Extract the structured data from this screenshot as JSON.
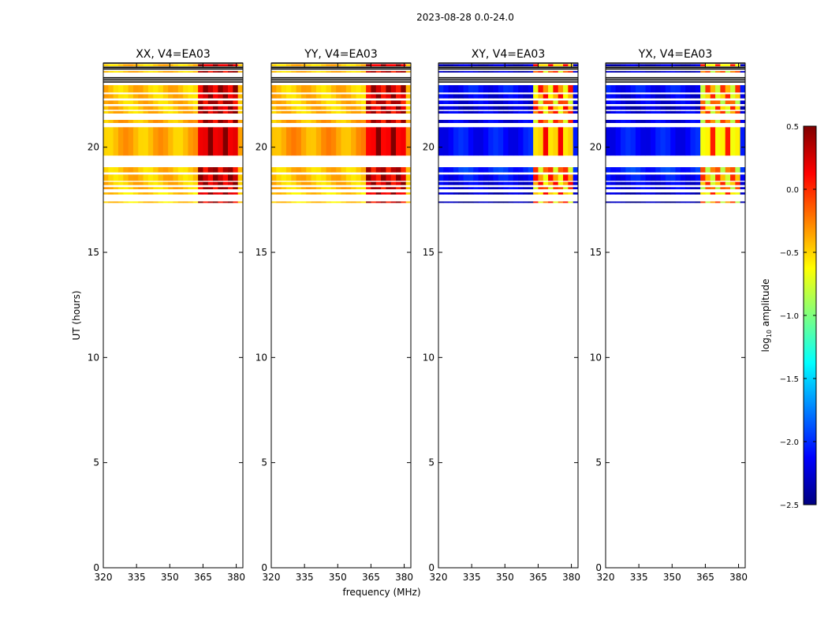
{
  "figure": {
    "suptitle": "2023-08-28 0.0-24.0",
    "xlabel": "frequency (MHz)",
    "ylabel": "UT (hours)"
  },
  "colorbar": {
    "label_main": "log",
    "label_sub": "10",
    "label_rest": " amplitude",
    "ticks": [
      0.5,
      0.0,
      -0.5,
      -1.0,
      -1.5,
      -2.0,
      -2.5
    ],
    "tick_labels": [
      "0.5",
      "0.0",
      "−0.5",
      "−1.0",
      "−1.5",
      "−2.0",
      "−2.5"
    ],
    "range": [
      -2.5,
      0.5
    ],
    "colormap": "jet",
    "stops": [
      "#00007f",
      "#0000ff",
      "#007fff",
      "#00ffff",
      "#7fff7f",
      "#ffff00",
      "#ff7f00",
      "#ff0000",
      "#7f0000"
    ]
  },
  "chart_data": {
    "type": "heatmap",
    "title": "2023-08-28 0.0-24.0",
    "xlabel": "frequency (MHz)",
    "ylabel": "UT (hours)",
    "xlim": [
      320,
      383
    ],
    "ylim": [
      0,
      24
    ],
    "xticks": [
      320,
      335,
      350,
      365,
      380
    ],
    "yticks": [
      0,
      5,
      10,
      15,
      20
    ],
    "zlabel": "log10 amplitude",
    "zlim": [
      -2.5,
      0.5
    ],
    "panels": [
      {
        "title": "XX, V4=EA03",
        "hot_band_mhz": [
          363,
          380
        ],
        "quiet_level": -0.4,
        "band_level": 0.3,
        "edge_level": -0.3,
        "segments": [
          {
            "start": 17.35,
            "end": 17.42,
            "level": -0.5
          },
          {
            "start": 17.75,
            "end": 17.85,
            "level": -0.5
          },
          {
            "start": 18.0,
            "end": 18.1,
            "level": -0.45
          },
          {
            "start": 18.2,
            "end": 18.35,
            "level": -0.45
          },
          {
            "start": 18.4,
            "end": 18.7,
            "level": -0.45
          },
          {
            "start": 18.8,
            "end": 19.05,
            "level": -0.45
          },
          {
            "start": 19.6,
            "end": 20.95,
            "level": -0.4
          },
          {
            "start": 21.15,
            "end": 21.3,
            "level": -0.4
          },
          {
            "start": 21.6,
            "end": 21.72,
            "level": -0.45
          },
          {
            "start": 21.78,
            "end": 21.95,
            "level": -0.45
          },
          {
            "start": 22.05,
            "end": 22.22,
            "level": -0.45
          },
          {
            "start": 22.32,
            "end": 22.52,
            "level": -0.45
          },
          {
            "start": 22.6,
            "end": 22.95,
            "level": -0.45
          },
          {
            "start": 23.55,
            "end": 23.62,
            "level": -0.45
          },
          {
            "start": 23.85,
            "end": 23.95,
            "level": -0.45
          }
        ],
        "dark_rows": [
          23.1,
          23.2,
          23.3,
          23.72,
          23.8,
          24.0
        ]
      },
      {
        "title": "YY, V4=EA03",
        "hot_band_mhz": [
          363,
          380
        ],
        "quiet_level": -0.35,
        "band_level": 0.25,
        "edge_level": -0.3,
        "segments": [
          {
            "start": 17.35,
            "end": 17.42,
            "level": -0.5
          },
          {
            "start": 17.75,
            "end": 17.85,
            "level": -0.5
          },
          {
            "start": 18.0,
            "end": 18.1,
            "level": -0.45
          },
          {
            "start": 18.2,
            "end": 18.35,
            "level": -0.45
          },
          {
            "start": 18.4,
            "end": 18.7,
            "level": -0.45
          },
          {
            "start": 18.8,
            "end": 19.05,
            "level": -0.45
          },
          {
            "start": 19.6,
            "end": 20.95,
            "level": -0.35
          },
          {
            "start": 21.15,
            "end": 21.3,
            "level": -0.4
          },
          {
            "start": 21.6,
            "end": 21.72,
            "level": -0.45
          },
          {
            "start": 21.78,
            "end": 21.95,
            "level": -0.45
          },
          {
            "start": 22.05,
            "end": 22.22,
            "level": -0.45
          },
          {
            "start": 22.32,
            "end": 22.52,
            "level": -0.45
          },
          {
            "start": 22.6,
            "end": 22.95,
            "level": -0.45
          },
          {
            "start": 23.55,
            "end": 23.62,
            "level": -0.45
          },
          {
            "start": 23.85,
            "end": 23.95,
            "level": -0.45
          }
        ],
        "dark_rows": [
          23.1,
          23.2,
          23.3,
          23.72,
          23.8,
          24.0
        ]
      },
      {
        "title": "XY, V4=EA03",
        "hot_band_mhz": [
          363,
          380
        ],
        "quiet_level": -2.1,
        "band_level": -0.3,
        "edge_level": -1.3,
        "segments": [
          {
            "start": 17.35,
            "end": 17.42,
            "level": -2.4
          },
          {
            "start": 17.75,
            "end": 17.85,
            "level": -2.3
          },
          {
            "start": 18.0,
            "end": 18.1,
            "level": -2.2
          },
          {
            "start": 18.2,
            "end": 18.35,
            "level": -2.2
          },
          {
            "start": 18.4,
            "end": 18.7,
            "level": -2.1
          },
          {
            "start": 18.8,
            "end": 19.05,
            "level": -2.0
          },
          {
            "start": 19.6,
            "end": 20.95,
            "level": -2.1
          },
          {
            "start": 21.15,
            "end": 21.3,
            "level": -2.2
          },
          {
            "start": 21.6,
            "end": 21.72,
            "level": -2.2
          },
          {
            "start": 21.78,
            "end": 21.95,
            "level": -2.3
          },
          {
            "start": 22.05,
            "end": 22.22,
            "level": -2.2
          },
          {
            "start": 22.32,
            "end": 22.52,
            "level": -2.2
          },
          {
            "start": 22.6,
            "end": 22.95,
            "level": -2.1
          },
          {
            "start": 23.55,
            "end": 23.62,
            "level": -2.3
          },
          {
            "start": 23.85,
            "end": 23.95,
            "level": -2.3
          }
        ],
        "dark_rows": [
          23.1,
          23.2,
          23.3,
          23.72,
          23.8,
          24.0
        ]
      },
      {
        "title": "YX, V4=EA03",
        "hot_band_mhz": [
          363,
          380
        ],
        "quiet_level": -2.15,
        "band_level": -0.4,
        "edge_level": -1.3,
        "segments": [
          {
            "start": 17.35,
            "end": 17.42,
            "level": -2.4
          },
          {
            "start": 17.75,
            "end": 17.85,
            "level": -2.3
          },
          {
            "start": 18.0,
            "end": 18.1,
            "level": -2.2
          },
          {
            "start": 18.2,
            "end": 18.35,
            "level": -2.2
          },
          {
            "start": 18.4,
            "end": 18.7,
            "level": -2.1
          },
          {
            "start": 18.8,
            "end": 19.05,
            "level": -2.0
          },
          {
            "start": 19.6,
            "end": 20.95,
            "level": -2.1
          },
          {
            "start": 21.15,
            "end": 21.3,
            "level": -2.2
          },
          {
            "start": 21.6,
            "end": 21.72,
            "level": -2.2
          },
          {
            "start": 21.78,
            "end": 21.95,
            "level": -2.3
          },
          {
            "start": 22.05,
            "end": 22.22,
            "level": -2.2
          },
          {
            "start": 22.32,
            "end": 22.52,
            "level": -2.2
          },
          {
            "start": 22.6,
            "end": 22.95,
            "level": -2.1
          },
          {
            "start": 23.55,
            "end": 23.62,
            "level": -2.3
          },
          {
            "start": 23.85,
            "end": 23.95,
            "level": -2.3
          }
        ],
        "dark_rows": [
          23.1,
          23.2,
          23.3,
          23.72,
          23.8,
          24.0
        ]
      }
    ]
  }
}
